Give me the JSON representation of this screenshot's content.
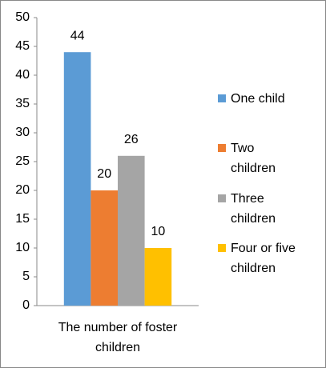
{
  "chart_data": {
    "type": "bar",
    "categories": [
      "The number of foster children"
    ],
    "series": [
      {
        "name": "One child",
        "color": "#5b9bd5",
        "values": [
          44
        ]
      },
      {
        "name": "Two children",
        "color": "#ed7d31",
        "values": [
          20
        ]
      },
      {
        "name": "Three children",
        "color": "#a5a5a5",
        "values": [
          26
        ]
      },
      {
        "name": "Four or five children",
        "color": "#ffc000",
        "values": [
          10
        ]
      }
    ],
    "ylim": [
      0,
      50
    ],
    "yticks": [
      0,
      5,
      10,
      15,
      20,
      25,
      30,
      35,
      40,
      45,
      50
    ],
    "grid": false,
    "legend": "right"
  }
}
